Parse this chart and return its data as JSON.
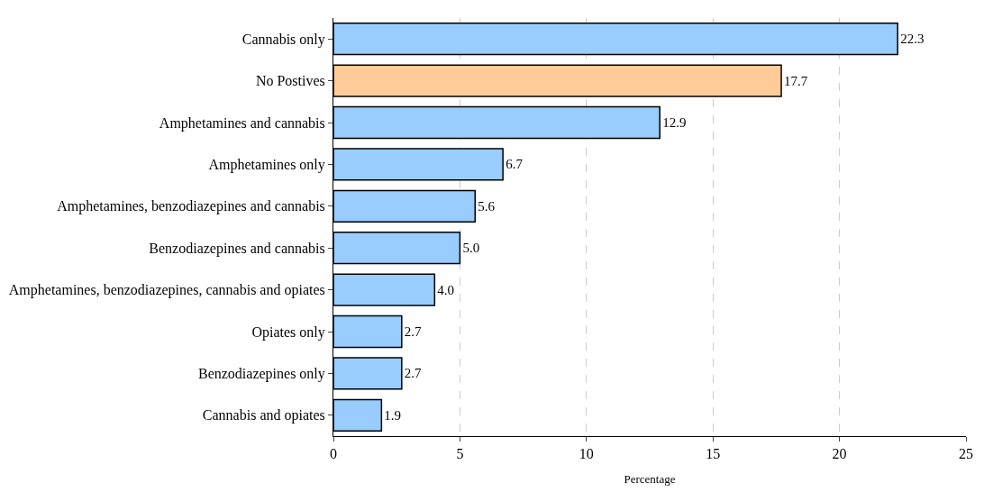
{
  "chart_data": {
    "type": "bar",
    "orientation": "horizontal",
    "xlabel": "Percentage",
    "categories": [
      "Cannabis only",
      "No Postives",
      "Amphetamines and cannabis",
      "Amphetamines only",
      "Amphetamines, benzodiazepines and cannabis",
      "Benzodiazepines and cannabis",
      "Amphetamines, benzodiazepines, cannabis and opiates",
      "Opiates only",
      "Benzodiazepines only",
      "Cannabis and opiates"
    ],
    "values": [
      22.3,
      17.7,
      12.9,
      6.7,
      5.6,
      5.0,
      4.0,
      2.7,
      2.7,
      1.9
    ],
    "value_labels": [
      "22.3",
      "17.7",
      "12.9",
      "6.7",
      "5.6",
      "5.0",
      "4.0",
      "2.7",
      "2.7",
      "1.9"
    ],
    "colors": [
      "#99ccff",
      "#ffcc99",
      "#99ccff",
      "#99ccff",
      "#99ccff",
      "#99ccff",
      "#99ccff",
      "#99ccff",
      "#99ccff",
      "#99ccff"
    ],
    "xlim": [
      0,
      25
    ],
    "xticks": [
      0,
      5,
      10,
      15,
      20,
      25
    ],
    "grid": "x",
    "legend": false
  }
}
